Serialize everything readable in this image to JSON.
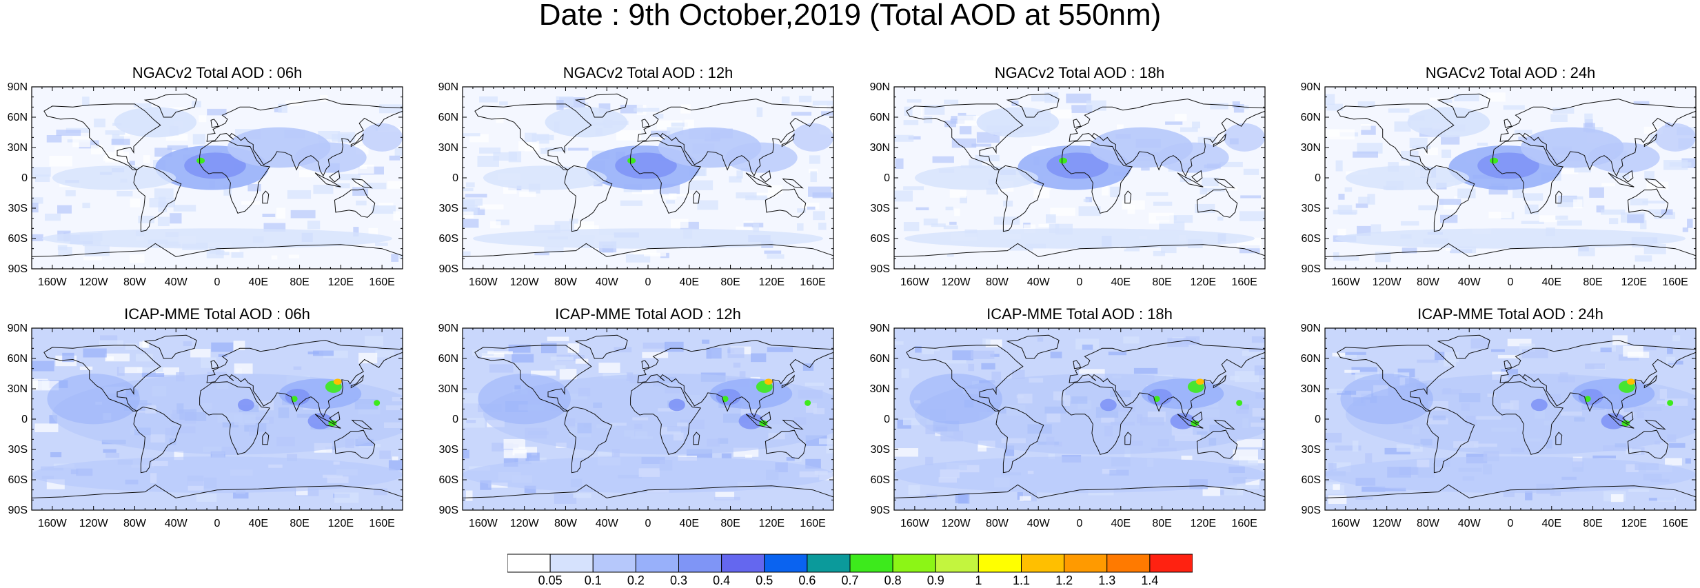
{
  "title": "Date : 9th October,2019 (Total AOD at 550nm)",
  "panels": [
    {
      "title": "NGACv2 Total AOD : 06h",
      "model": "NGACv2"
    },
    {
      "title": "NGACv2 Total AOD : 12h",
      "model": "NGACv2"
    },
    {
      "title": "NGACv2 Total AOD : 18h",
      "model": "NGACv2"
    },
    {
      "title": "NGACv2 Total AOD : 24h",
      "model": "NGACv2"
    },
    {
      "title": "ICAP-MME Total AOD : 06h",
      "model": "ICAP-MME"
    },
    {
      "title": "ICAP-MME Total AOD : 12h",
      "model": "ICAP-MME"
    },
    {
      "title": "ICAP-MME Total AOD : 18h",
      "model": "ICAP-MME"
    },
    {
      "title": "ICAP-MME Total AOD : 24h",
      "model": "ICAP-MME"
    }
  ],
  "lat_labels": [
    "90N",
    "60N",
    "30N",
    "0",
    "30S",
    "60S",
    "90S"
  ],
  "lon_labels": [
    "160W",
    "120W",
    "80W",
    "40W",
    "0",
    "40E",
    "80E",
    "120E",
    "160E"
  ],
  "colorbar": {
    "labels": [
      "0.05",
      "0.1",
      "0.2",
      "0.3",
      "0.4",
      "0.5",
      "0.6",
      "0.7",
      "0.8",
      "0.9",
      "1",
      "1.1",
      "1.2",
      "1.3",
      "1.4"
    ],
    "colors": [
      "#ffffff",
      "#d6e2fd",
      "#b6c8fb",
      "#98b0fa",
      "#7f95f6",
      "#6467ef",
      "#0a63f0",
      "#0b9a9b",
      "#3dea1c",
      "#8cf516",
      "#c3f53e",
      "#ffff00",
      "#ffbf00",
      "#ff9a00",
      "#ff7a00",
      "#ff2211"
    ]
  }
}
